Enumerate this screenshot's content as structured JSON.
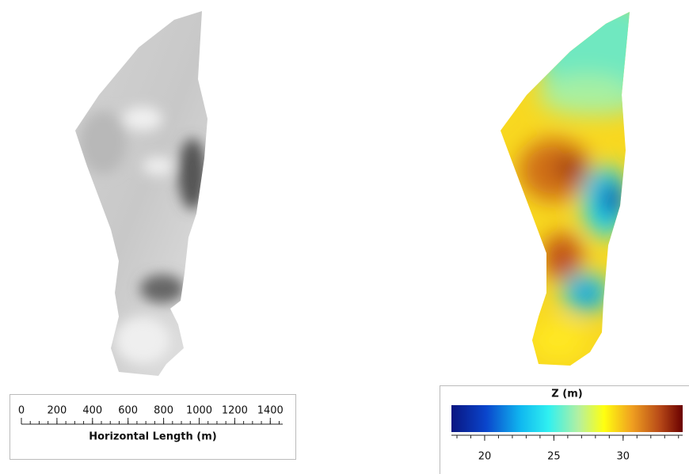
{
  "scale_bar": {
    "ticks": [
      0,
      200,
      400,
      600,
      800,
      1000,
      1200,
      1400
    ],
    "range": [
      0,
      1470
    ],
    "label": "Horizontal Length (m)"
  },
  "legend": {
    "title": "Z (m)",
    "ticks": [
      20,
      25,
      30
    ],
    "range": [
      17.6,
      34.3
    ]
  }
}
